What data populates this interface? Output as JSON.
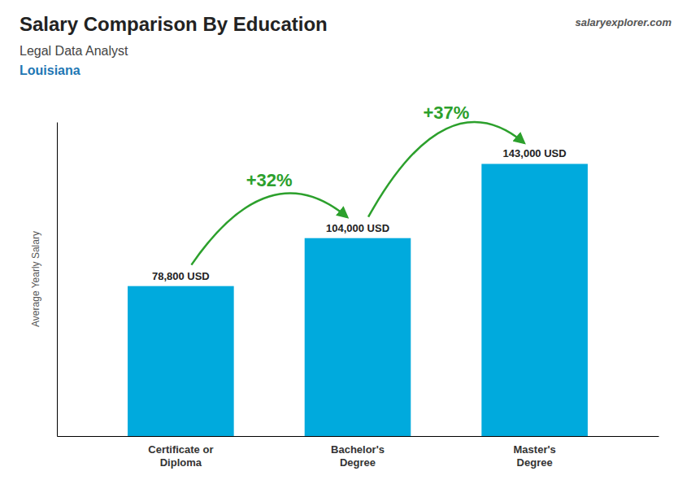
{
  "chart_data": {
    "type": "bar",
    "title": "Salary Comparison By Education",
    "subtitle": [
      "Legal Data Analyst",
      "Louisiana"
    ],
    "source": "salaryexplorer.com",
    "ylabel": "Average Yearly Salary",
    "categories": [
      "Certificate or\nDiploma",
      "Bachelor's\nDegree",
      "Master's\nDegree"
    ],
    "values": [
      78800,
      104000,
      143000
    ],
    "value_labels": [
      "78,800 USD",
      "104,000 USD",
      "143,000 USD"
    ],
    "data_labels": true,
    "annotations": [
      "+32%",
      "+37%"
    ],
    "color": "#00aadd",
    "ylim": [
      0,
      165000
    ],
    "yticks": [],
    "tick_labels": "x",
    "grid": false
  }
}
